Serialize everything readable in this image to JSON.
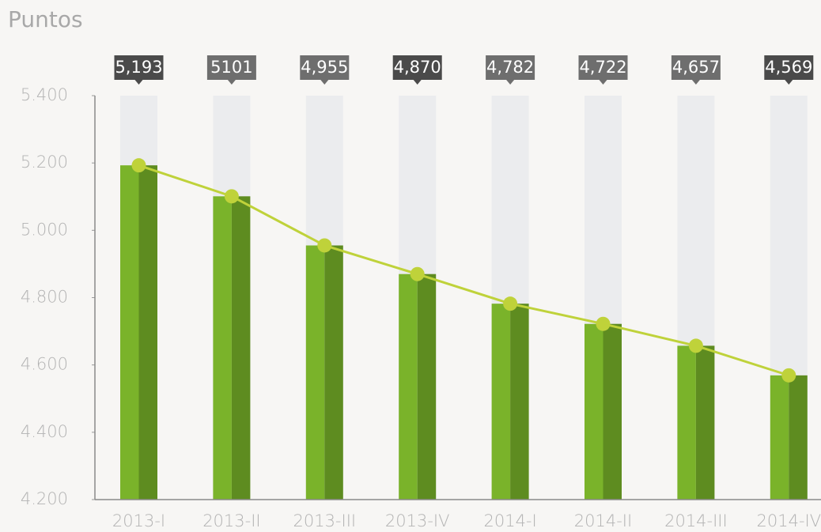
{
  "chart_data": {
    "type": "bar_line",
    "title": "Puntos",
    "categories": [
      "2013-I",
      "2013-II",
      "2013-III",
      "2013-IV",
      "2014-I",
      "2014-II",
      "2014-III",
      "2014-IV"
    ],
    "values": [
      5193,
      5101,
      4955,
      4870,
      4782,
      4722,
      4657,
      4569
    ],
    "value_labels": [
      "5,193",
      "5101",
      "4,955",
      "4,870",
      "4,782",
      "4,722",
      "4,657",
      "4,569"
    ],
    "label_colors": [
      "#4a4a4a",
      "#6e6e6e",
      "#6e6e6e",
      "#4a4a4a",
      "#6e6e6e",
      "#6e6e6e",
      "#6e6e6e",
      "#4a4a4a"
    ],
    "color": "#7ab32a",
    "shade_color": "#5e8c20",
    "background_bar_color": "#ebecee",
    "line_color": "#bfd23a",
    "ylim": [
      4200,
      5400
    ],
    "yticks": [
      {
        "value": 4200,
        "label": "4.200"
      },
      {
        "value": 4400,
        "label": "4.400"
      },
      {
        "value": 4600,
        "label": "4.600"
      },
      {
        "value": 4800,
        "label": "4.800"
      },
      {
        "value": 5000,
        "label": "5.000"
      },
      {
        "value": 5200,
        "label": "5.200"
      },
      {
        "value": 5400,
        "label": "5.400"
      }
    ]
  }
}
